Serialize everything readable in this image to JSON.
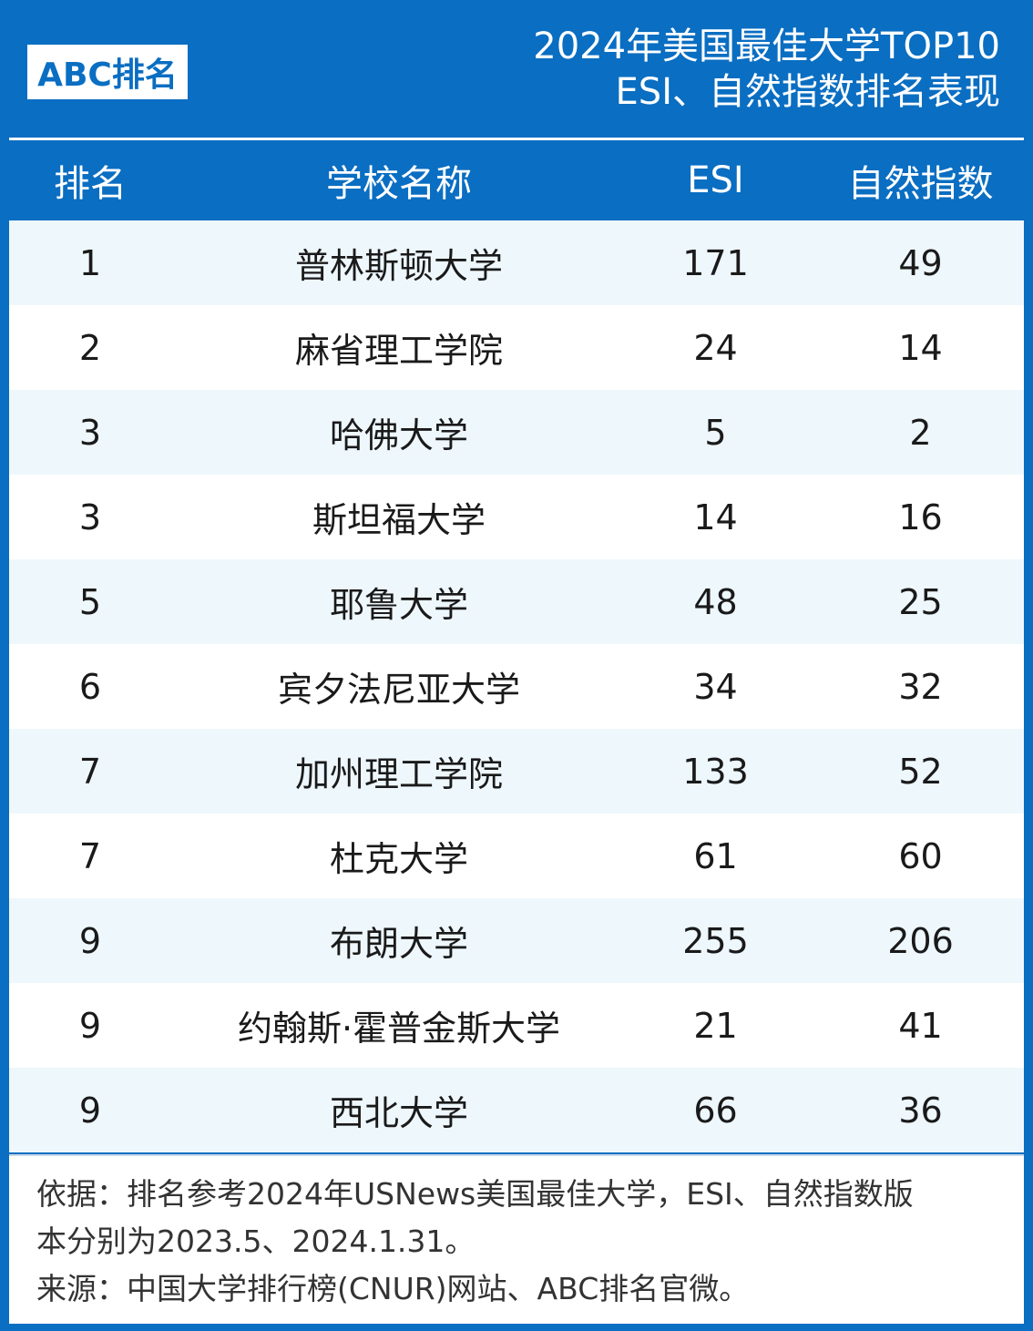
{
  "brand": {
    "logo_text": "ABC排名"
  },
  "header": {
    "title_line1": "2024年美国最佳大学TOP10",
    "title_line2": "ESI、自然指数排名表现"
  },
  "columns": {
    "rank": "排名",
    "name": "学校名称",
    "esi": "ESI",
    "nature_index": "自然指数"
  },
  "rows": [
    {
      "rank": "1",
      "name": "普林斯顿大学",
      "esi": "171",
      "nature_index": "49"
    },
    {
      "rank": "2",
      "name": "麻省理工学院",
      "esi": "24",
      "nature_index": "14"
    },
    {
      "rank": "3",
      "name": "哈佛大学",
      "esi": "5",
      "nature_index": "2"
    },
    {
      "rank": "3",
      "name": "斯坦福大学",
      "esi": "14",
      "nature_index": "16"
    },
    {
      "rank": "5",
      "name": "耶鲁大学",
      "esi": "48",
      "nature_index": "25"
    },
    {
      "rank": "6",
      "name": "宾夕法尼亚大学",
      "esi": "34",
      "nature_index": "32"
    },
    {
      "rank": "7",
      "name": "加州理工学院",
      "esi": "133",
      "nature_index": "52"
    },
    {
      "rank": "7",
      "name": "杜克大学",
      "esi": "61",
      "nature_index": "60"
    },
    {
      "rank": "9",
      "name": "布朗大学",
      "esi": "255",
      "nature_index": "206"
    },
    {
      "rank": "9",
      "name": "约翰斯·霍普金斯大学",
      "esi": "21",
      "nature_index": "41"
    },
    {
      "rank": "9",
      "name": "西北大学",
      "esi": "66",
      "nature_index": "36"
    }
  ],
  "footer": {
    "basis_line1": "依据：排名参考2024年USNews美国最佳大学，ESI、自然指数版",
    "basis_line2": "本分别为2023.5、2024.1.31。",
    "source": "来源：中国大学排行榜(CNUR)网站、ABC排名官微。"
  },
  "colors": {
    "primary_blue": "#0a6ec2",
    "row_alt": "#eef7fc",
    "row_plain": "#ffffff"
  }
}
